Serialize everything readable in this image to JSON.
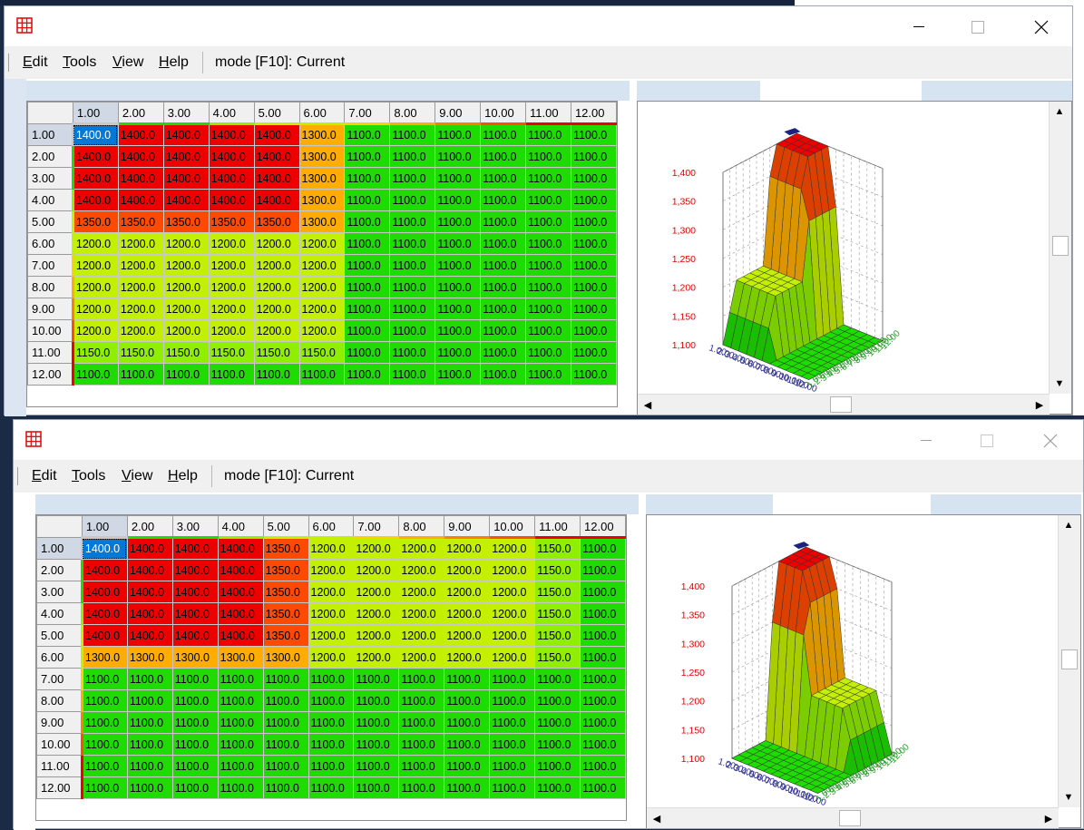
{
  "windows": [
    {
      "id": "w1",
      "menu": {
        "edit": "Edit",
        "tools": "Tools",
        "view": "View",
        "help": "Help",
        "mode": "mode [F10]: Current"
      },
      "col_headers": [
        "1.00",
        "2.00",
        "3.00",
        "4.00",
        "5.00",
        "6.00",
        "7.00",
        "8.00",
        "9.00",
        "10.00",
        "11.00",
        "12.00"
      ],
      "row_headers": [
        "1.00",
        "2.00",
        "3.00",
        "4.00",
        "5.00",
        "6.00",
        "7.00",
        "8.00",
        "9.00",
        "10.00",
        "11.00",
        "12.00"
      ],
      "rows": [
        [
          "1400.0",
          "1400.0",
          "1400.0",
          "1400.0",
          "1400.0",
          "1300.0",
          "1100.0",
          "1100.0",
          "1100.0",
          "1100.0",
          "1100.0",
          "1100.0"
        ],
        [
          "1400.0",
          "1400.0",
          "1400.0",
          "1400.0",
          "1400.0",
          "1300.0",
          "1100.0",
          "1100.0",
          "1100.0",
          "1100.0",
          "1100.0",
          "1100.0"
        ],
        [
          "1400.0",
          "1400.0",
          "1400.0",
          "1400.0",
          "1400.0",
          "1300.0",
          "1100.0",
          "1100.0",
          "1100.0",
          "1100.0",
          "1100.0",
          "1100.0"
        ],
        [
          "1400.0",
          "1400.0",
          "1400.0",
          "1400.0",
          "1400.0",
          "1300.0",
          "1100.0",
          "1100.0",
          "1100.0",
          "1100.0",
          "1100.0",
          "1100.0"
        ],
        [
          "1350.0",
          "1350.0",
          "1350.0",
          "1350.0",
          "1350.0",
          "1300.0",
          "1100.0",
          "1100.0",
          "1100.0",
          "1100.0",
          "1100.0",
          "1100.0"
        ],
        [
          "1200.0",
          "1200.0",
          "1200.0",
          "1200.0",
          "1200.0",
          "1200.0",
          "1100.0",
          "1100.0",
          "1100.0",
          "1100.0",
          "1100.0",
          "1100.0"
        ],
        [
          "1200.0",
          "1200.0",
          "1200.0",
          "1200.0",
          "1200.0",
          "1200.0",
          "1100.0",
          "1100.0",
          "1100.0",
          "1100.0",
          "1100.0",
          "1100.0"
        ],
        [
          "1200.0",
          "1200.0",
          "1200.0",
          "1200.0",
          "1200.0",
          "1200.0",
          "1100.0",
          "1100.0",
          "1100.0",
          "1100.0",
          "1100.0",
          "1100.0"
        ],
        [
          "1200.0",
          "1200.0",
          "1200.0",
          "1200.0",
          "1200.0",
          "1200.0",
          "1100.0",
          "1100.0",
          "1100.0",
          "1100.0",
          "1100.0",
          "1100.0"
        ],
        [
          "1200.0",
          "1200.0",
          "1200.0",
          "1200.0",
          "1200.0",
          "1200.0",
          "1100.0",
          "1100.0",
          "1100.0",
          "1100.0",
          "1100.0",
          "1100.0"
        ],
        [
          "1150.0",
          "1150.0",
          "1150.0",
          "1150.0",
          "1150.0",
          "1150.0",
          "1100.0",
          "1100.0",
          "1100.0",
          "1100.0",
          "1100.0",
          "1100.0"
        ],
        [
          "1100.0",
          "1100.0",
          "1100.0",
          "1100.0",
          "1100.0",
          "1100.0",
          "1100.0",
          "1100.0",
          "1100.0",
          "1100.0",
          "1100.0",
          "1100.0"
        ]
      ],
      "chart": {
        "z_ticks": [
          "1,400",
          "1,350",
          "1,300",
          "1,250",
          "1,200",
          "1,150",
          "1,100"
        ],
        "x_ticks": [
          "1.00",
          "2.00",
          "3.00",
          "4.00",
          "5.00",
          "6.00",
          "7.00",
          "8.00",
          "9.00",
          "10.00",
          "11.00",
          "12.00"
        ],
        "y_ticks": [
          "1.00",
          "2.00",
          "3.00",
          "4.00",
          "5.00",
          "6.00",
          "7.00",
          "8.00",
          "9.00",
          "10.00",
          "11.00",
          "12.00"
        ]
      }
    },
    {
      "id": "w2",
      "menu": {
        "edit": "Edit",
        "tools": "Tools",
        "view": "View",
        "help": "Help",
        "mode": "mode [F10]: Current"
      },
      "col_headers": [
        "1.00",
        "2.00",
        "3.00",
        "4.00",
        "5.00",
        "6.00",
        "7.00",
        "8.00",
        "9.00",
        "10.00",
        "11.00",
        "12.00"
      ],
      "row_headers": [
        "1.00",
        "2.00",
        "3.00",
        "4.00",
        "5.00",
        "6.00",
        "7.00",
        "8.00",
        "9.00",
        "10.00",
        "11.00",
        "12.00"
      ],
      "rows": [
        [
          "1400.0",
          "1400.0",
          "1400.0",
          "1400.0",
          "1350.0",
          "1200.0",
          "1200.0",
          "1200.0",
          "1200.0",
          "1200.0",
          "1150.0",
          "1100.0"
        ],
        [
          "1400.0",
          "1400.0",
          "1400.0",
          "1400.0",
          "1350.0",
          "1200.0",
          "1200.0",
          "1200.0",
          "1200.0",
          "1200.0",
          "1150.0",
          "1100.0"
        ],
        [
          "1400.0",
          "1400.0",
          "1400.0",
          "1400.0",
          "1350.0",
          "1200.0",
          "1200.0",
          "1200.0",
          "1200.0",
          "1200.0",
          "1150.0",
          "1100.0"
        ],
        [
          "1400.0",
          "1400.0",
          "1400.0",
          "1400.0",
          "1350.0",
          "1200.0",
          "1200.0",
          "1200.0",
          "1200.0",
          "1200.0",
          "1150.0",
          "1100.0"
        ],
        [
          "1400.0",
          "1400.0",
          "1400.0",
          "1400.0",
          "1350.0",
          "1200.0",
          "1200.0",
          "1200.0",
          "1200.0",
          "1200.0",
          "1150.0",
          "1100.0"
        ],
        [
          "1300.0",
          "1300.0",
          "1300.0",
          "1300.0",
          "1300.0",
          "1200.0",
          "1200.0",
          "1200.0",
          "1200.0",
          "1200.0",
          "1150.0",
          "1100.0"
        ],
        [
          "1100.0",
          "1100.0",
          "1100.0",
          "1100.0",
          "1100.0",
          "1100.0",
          "1100.0",
          "1100.0",
          "1100.0",
          "1100.0",
          "1100.0",
          "1100.0"
        ],
        [
          "1100.0",
          "1100.0",
          "1100.0",
          "1100.0",
          "1100.0",
          "1100.0",
          "1100.0",
          "1100.0",
          "1100.0",
          "1100.0",
          "1100.0",
          "1100.0"
        ],
        [
          "1100.0",
          "1100.0",
          "1100.0",
          "1100.0",
          "1100.0",
          "1100.0",
          "1100.0",
          "1100.0",
          "1100.0",
          "1100.0",
          "1100.0",
          "1100.0"
        ],
        [
          "1100.0",
          "1100.0",
          "1100.0",
          "1100.0",
          "1100.0",
          "1100.0",
          "1100.0",
          "1100.0",
          "1100.0",
          "1100.0",
          "1100.0",
          "1100.0"
        ],
        [
          "1100.0",
          "1100.0",
          "1100.0",
          "1100.0",
          "1100.0",
          "1100.0",
          "1100.0",
          "1100.0",
          "1100.0",
          "1100.0",
          "1100.0",
          "1100.0"
        ],
        [
          "1100.0",
          "1100.0",
          "1100.0",
          "1100.0",
          "1100.0",
          "1100.0",
          "1100.0",
          "1100.0",
          "1100.0",
          "1100.0",
          "1100.0",
          "1100.0"
        ]
      ],
      "chart": {
        "z_ticks": [
          "1,400",
          "1,350",
          "1,300",
          "1,250",
          "1,200",
          "1,150",
          "1,100"
        ],
        "x_ticks": [
          "1.00",
          "2.00",
          "3.00",
          "4.00",
          "5.00",
          "6.00",
          "7.00",
          "8.00",
          "9.00",
          "10.00",
          "11.00",
          "12.00"
        ],
        "y_ticks": [
          "1.00",
          "2.00",
          "3.00",
          "4.00",
          "5.00",
          "6.00",
          "7.00",
          "8.00",
          "9.00",
          "10.00",
          "11.00",
          "12.00"
        ]
      }
    }
  ],
  "colors": {
    "1400": "#ee0000",
    "1350": "#ff4a00",
    "1300": "#ffad00",
    "1200": "#c3f000",
    "1150": "#90ee00",
    "1100": "#1fdc00"
  }
}
